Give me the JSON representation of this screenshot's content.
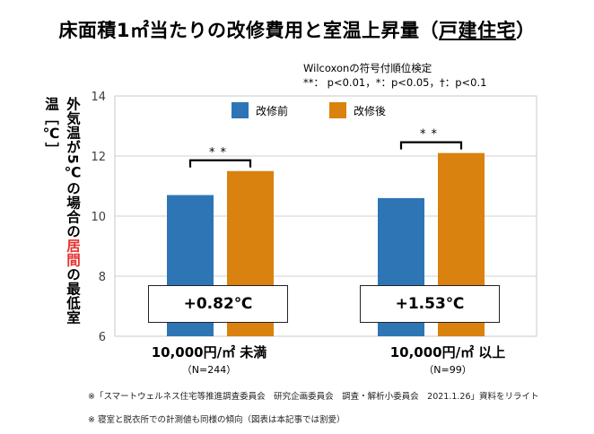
{
  "title": {
    "prefix": "床面積1㎡当たりの改修費用と室温上昇量（",
    "underlined": "戸建住宅",
    "suffix": "）"
  },
  "stat_note": {
    "line1": "Wilcoxonの符号付順位検定",
    "line2": "**： p<0.01，*：p<0.05，†：p<0.1"
  },
  "ylabel": {
    "part1": "外気温が5℃の場合の",
    "part2_red": "居間",
    "part3": "の最低室温［℃］"
  },
  "differences": [
    "+0.82℃",
    "+1.53℃"
  ],
  "significance": [
    "**",
    "**"
  ],
  "category_n": [
    "（N=244）",
    "（N=99）"
  ],
  "footnotes": [
    "※「スマートウェルネス住宅等推進調査委員会　研究企画委員会　調査・解析小委員会　2021.1.26」資料をリライト",
    "※ 寝室と脱衣所での計測値も同様の傾向（図表は本記事では割愛）"
  ],
  "colors": {
    "before": "#2e75b6",
    "after": "#d9820f",
    "grid": "#d0d0d0"
  },
  "chart_data": {
    "type": "bar",
    "categories": [
      "10,000円/㎡ 未満",
      "10,000円/㎡ 以上"
    ],
    "series": [
      {
        "name": "改修前",
        "values": [
          10.7,
          10.6
        ]
      },
      {
        "name": "改修後",
        "values": [
          11.5,
          12.1
        ]
      }
    ],
    "ylim": [
      6,
      14
    ],
    "yticks": [
      6,
      8,
      10,
      12,
      14
    ],
    "grid": true,
    "legend": "top"
  }
}
